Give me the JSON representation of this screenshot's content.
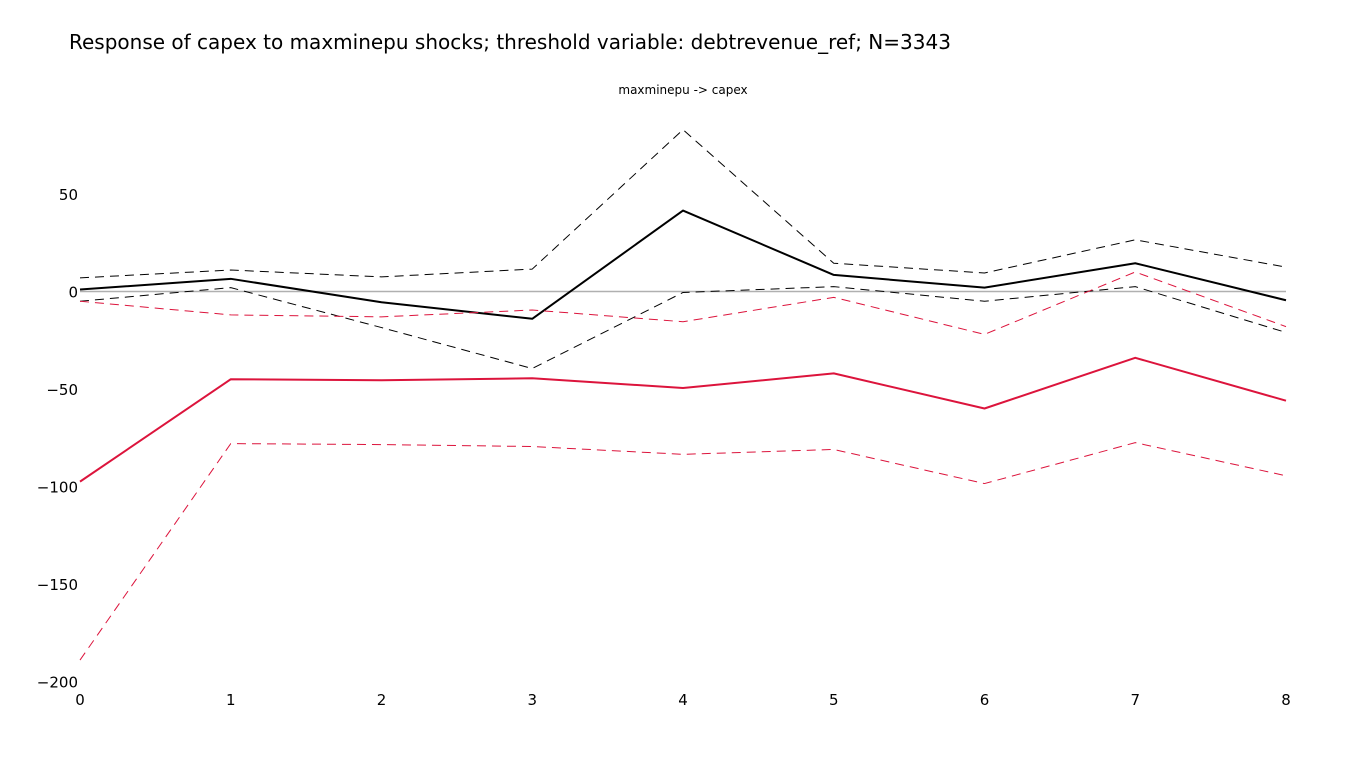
{
  "title": "Response of capex to maxminepu shocks; threshold variable: debtrevenue_ref; N=3343",
  "subtitle": "maxminepu -> capex",
  "colors": {
    "black": "#000000",
    "red": "#dc143c",
    "zero_line": "#b0b0b0"
  },
  "chart_data": {
    "type": "line",
    "x": [
      0,
      1,
      2,
      3,
      4,
      5,
      6,
      7,
      8
    ],
    "xlim": [
      0,
      8
    ],
    "ylim": [
      -200,
      85
    ],
    "x_ticks": [
      0,
      1,
      2,
      3,
      4,
      5,
      6,
      7,
      8
    ],
    "y_ticks": [
      50,
      0,
      -50,
      -100,
      -150,
      -200
    ],
    "y_tick_labels": [
      "50",
      "0",
      "−50",
      "−100",
      "−150",
      "−200"
    ],
    "grid": false,
    "legend": "none",
    "series": [
      {
        "color": "black",
        "style": "solid",
        "values": [
          1,
          6.5,
          -5.5,
          -14,
          41.5,
          8.5,
          2,
          14.5,
          -4.5
        ]
      },
      {
        "color": "black",
        "style": "dashed",
        "values": [
          7,
          11,
          7.5,
          11.5,
          83,
          14.5,
          9.5,
          26.5,
          12.5
        ]
      },
      {
        "color": "black",
        "style": "dashed",
        "values": [
          -5,
          2,
          -18.5,
          -39.5,
          -0.5,
          2.5,
          -5,
          2.5,
          -21
        ]
      },
      {
        "color": "red",
        "style": "solid",
        "values": [
          -97.5,
          -45,
          -45.5,
          -44.5,
          -49.5,
          -42,
          -60,
          -34,
          -56
        ]
      },
      {
        "color": "red",
        "style": "dashed",
        "values": [
          -5,
          -12,
          -13,
          -9.5,
          -15.5,
          -3,
          -22,
          10,
          -18
        ]
      },
      {
        "color": "red",
        "style": "dashed",
        "values": [
          -189,
          -78,
          -78.5,
          -79.5,
          -83.5,
          -81,
          -98.5,
          -77.5,
          -94.5
        ]
      }
    ]
  }
}
